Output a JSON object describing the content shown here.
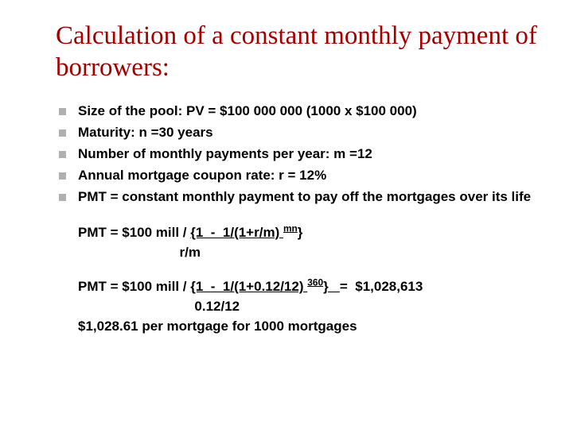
{
  "title": "Calculation of a constant monthly payment of borrowers:",
  "bullets": [
    "Size of the pool: PV = $100 000 000 (1000 x $100 000)",
    "Maturity: n =30 years",
    "Number of monthly payments per year: m =12",
    "Annual mortgage coupon rate: r = 12%",
    "PMT = constant monthly payment to pay off the mortgages over its life"
  ],
  "formula1": {
    "lhs": "PMT = $100 mill / ",
    "num_u": "{1  -  1/(1+r/m) ",
    "num_sup": "mn",
    "num_close": "}",
    "denom": "                           r/m"
  },
  "formula2": {
    "lhs": "PMT = $100 mill / ",
    "num_u": "{1  -  1/(1+0.12/12) ",
    "num_sup": "360",
    "num_close_u": "}   ",
    "rhs": "=  $1,028,613",
    "denom": "                               0.12/12"
  },
  "final_line": "$1,028.61 per mortgage for 1000 mortgages",
  "colors": {
    "title": "#a00000",
    "bullet_marker": "#b0b0b0",
    "text": "#000000",
    "background": "#ffffff"
  },
  "typography": {
    "title_family": "Times New Roman",
    "title_size_pt": 25,
    "body_family": "Arial",
    "body_size_pt": 13,
    "body_weight": "bold"
  }
}
